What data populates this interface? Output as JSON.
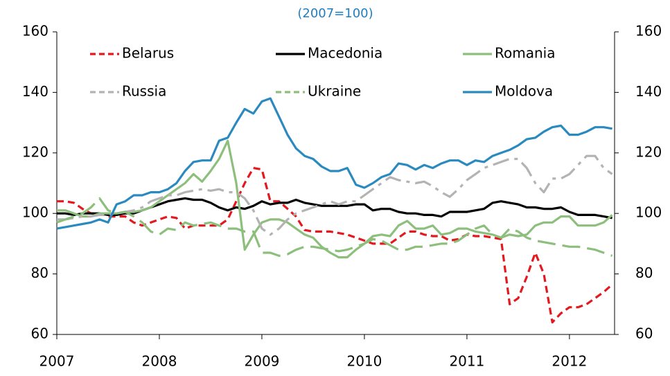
{
  "chart_data": {
    "type": "line",
    "title": "(2007=100)",
    "x": [
      2007,
      2007.083,
      2007.167,
      2007.25,
      2007.333,
      2007.417,
      2007.5,
      2007.583,
      2007.667,
      2007.75,
      2007.833,
      2007.917,
      2008,
      2008.083,
      2008.167,
      2008.25,
      2008.333,
      2008.417,
      2008.5,
      2008.583,
      2008.667,
      2008.75,
      2008.833,
      2008.917,
      2009,
      2009.083,
      2009.167,
      2009.25,
      2009.333,
      2009.417,
      2009.5,
      2009.583,
      2009.667,
      2009.75,
      2009.833,
      2009.917,
      2010,
      2010.083,
      2010.167,
      2010.25,
      2010.333,
      2010.417,
      2010.5,
      2010.583,
      2010.667,
      2010.75,
      2010.833,
      2010.917,
      2011,
      2011.083,
      2011.167,
      2011.25,
      2011.333,
      2011.417,
      2011.5,
      2011.583,
      2011.667,
      2011.75,
      2011.833,
      2011.917,
      2012,
      2012.083,
      2012.167,
      2012.25,
      2012.333,
      2012.417
    ],
    "xlim": [
      2007,
      2012.44
    ],
    "xticks": [
      2007,
      2008,
      2009,
      2010,
      2011,
      2012
    ],
    "ylim": [
      60,
      160
    ],
    "yticks": [
      60,
      80,
      100,
      120,
      140,
      160
    ],
    "y2lim": [
      60,
      160
    ],
    "y2ticks": [
      60,
      80,
      100,
      120,
      140,
      160
    ],
    "grid": false,
    "legend": "top",
    "series": [
      {
        "name": "Belarus",
        "color": "#e3191f",
        "style": "dashed",
        "values": [
          104,
          104,
          103.5,
          101.5,
          100,
          100,
          99,
          99,
          99,
          97,
          96,
          97,
          98,
          99,
          98.5,
          95,
          96,
          96,
          96,
          96,
          98,
          104,
          110,
          115,
          114.5,
          104,
          104,
          101.5,
          99,
          94.5,
          94,
          94,
          94,
          93.5,
          93,
          92,
          91,
          90,
          90,
          90,
          92,
          94,
          94,
          93,
          92.5,
          92.5,
          91,
          91.5,
          93,
          92.5,
          92.5,
          92,
          91.5,
          70,
          72,
          79,
          87,
          80,
          64,
          67,
          69,
          69,
          70,
          72,
          74,
          76.5
        ]
      },
      {
        "name": "Macedonia",
        "color": "#000000",
        "style": "solid",
        "values": [
          100,
          100,
          99.5,
          100,
          100,
          100,
          99.5,
          99.5,
          100,
          100,
          101,
          102,
          103,
          104,
          104.5,
          105,
          104.5,
          104.5,
          103.5,
          102,
          101,
          102,
          101.5,
          102.5,
          104,
          103,
          103.5,
          103.5,
          104.5,
          103.5,
          103,
          102.5,
          102.5,
          102.5,
          102.5,
          103,
          103,
          101,
          101.5,
          101.5,
          100.5,
          100,
          100,
          99.5,
          99.5,
          99,
          100.5,
          100.5,
          100.5,
          101,
          101.5,
          103.5,
          104,
          103.5,
          103,
          102,
          102,
          101.5,
          101.5,
          102,
          100.5,
          99.5,
          99.5,
          99.5,
          99,
          98.5
        ]
      },
      {
        "name": "Romania",
        "color": "#8dbf7c",
        "style": "solid",
        "values": [
          101,
          101,
          100,
          99,
          99,
          100,
          100,
          100,
          100.5,
          100.5,
          101,
          102,
          104,
          106,
          108,
          110,
          113,
          110.5,
          114,
          118,
          124,
          110,
          88,
          93,
          97,
          98,
          98,
          97,
          95,
          93,
          92,
          89,
          87,
          85.5,
          85.5,
          88,
          90,
          92.5,
          93,
          92.5,
          96,
          97.5,
          95,
          95,
          96,
          93,
          93.5,
          95,
          95,
          94,
          93.5,
          93,
          92,
          93,
          92.5,
          93,
          96,
          97,
          97,
          99,
          99,
          96,
          96,
          96,
          97,
          99.5
        ]
      },
      {
        "name": "Russia",
        "color": "#b3b3b3",
        "style": "dashdot",
        "values": [
          98,
          98,
          98.5,
          99,
          99,
          99.5,
          99.5,
          100,
          100.5,
          101,
          102,
          104,
          105,
          106,
          106,
          107,
          107.5,
          108,
          107.5,
          108,
          107,
          107,
          105,
          101,
          95,
          93,
          95,
          98,
          100,
          101,
          102,
          103,
          104,
          103,
          104,
          104,
          106,
          108,
          110,
          112,
          111,
          110.5,
          110,
          110.5,
          109,
          107,
          105.5,
          108,
          111,
          113,
          115,
          116,
          117,
          118,
          118,
          115,
          110,
          107,
          111.5,
          111.5,
          113,
          116,
          119,
          119,
          115,
          113
        ]
      },
      {
        "name": "Ukraine",
        "color": "#8dbf7c",
        "style": "longdash",
        "values": [
          97,
          98,
          99,
          100,
          102,
          105,
          101,
          100,
          100.5,
          99,
          97,
          94,
          93,
          95,
          94.5,
          97,
          96,
          96.5,
          97,
          96,
          95,
          95,
          94,
          94,
          87,
          87,
          86,
          86.5,
          88,
          89,
          89,
          88.5,
          88,
          87.5,
          88,
          89,
          90,
          91.5,
          91,
          89.5,
          88,
          88,
          89,
          89,
          89.5,
          90,
          90,
          91,
          93,
          95,
          96,
          93,
          92,
          95,
          94,
          92,
          91,
          90.5,
          90,
          89.5,
          89,
          89,
          88.5,
          88,
          87,
          86
        ]
      },
      {
        "name": "Moldova",
        "color": "#2a8abf",
        "style": "solid",
        "values": [
          95,
          95.5,
          96,
          96.5,
          97,
          98,
          97,
          103,
          104,
          106,
          106,
          107,
          107,
          108,
          110,
          114,
          117,
          117.5,
          117.5,
          124,
          125,
          130,
          134.5,
          133,
          137,
          138,
          132,
          126,
          121.5,
          119,
          118,
          115.5,
          114,
          114,
          115,
          109.5,
          108.5,
          110,
          112,
          113,
          116.5,
          116,
          114.5,
          116,
          115,
          116.5,
          117.5,
          117.5,
          116,
          117.5,
          117,
          119,
          120,
          121,
          122.5,
          124.5,
          125,
          127,
          128.5,
          129,
          126,
          126,
          127,
          128.5,
          128.5,
          128
        ]
      }
    ]
  }
}
